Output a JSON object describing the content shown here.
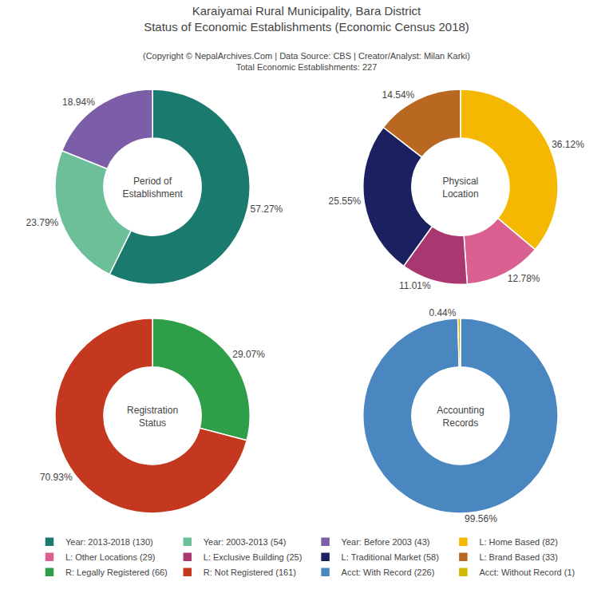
{
  "chart_data": [
    {
      "type": "pie",
      "title": "Karaiyamai Rural Municipality, Bara District\nStatus of Economic Establishments (Economic Census 2018)",
      "subtitle": "(Copyright © NepalArchives.Com | Data Source: CBS | Creator/Analyst: Milan Karki)\nTotal Economic Establishments: 227",
      "annotations": [
        "Period of\nEstablishment"
      ],
      "categories": [
        "Year: 2013-2018 (130)",
        "Year: 2003-2013 (54)",
        "Year: Before 2003 (43)"
      ],
      "values": [
        57.27,
        23.79,
        18.94
      ],
      "value_labels": [
        "57.27%",
        "23.79%",
        "18.94%"
      ],
      "colors": [
        "#1a7a6e",
        "#6dbf99",
        "#7b5ea7"
      ],
      "data_labels": true,
      "legend": "bottom"
    },
    {
      "type": "pie",
      "annotations": [
        "Physical\nLocation"
      ],
      "categories": [
        "L: Home Based (82)",
        "L: Other Locations (29)",
        "L: Exclusive Building (25)",
        "L: Traditional Market (58)",
        "L: Brand Based (33)"
      ],
      "values": [
        36.12,
        12.78,
        11.01,
        25.55,
        14.54
      ],
      "value_labels": [
        "36.12%",
        "12.78%",
        "11.01%",
        "25.55%",
        "14.54%"
      ],
      "colors": [
        "#f5b800",
        "#d96090",
        "#aa3870",
        "#1a2060",
        "#b86820"
      ],
      "data_labels": true
    },
    {
      "type": "pie",
      "annotations": [
        "Registration\nStatus"
      ],
      "categories": [
        "R: Legally Registered (66)",
        "R: Not Registered (161)"
      ],
      "values": [
        29.07,
        70.93
      ],
      "value_labels": [
        "29.07%",
        "70.93%"
      ],
      "colors": [
        "#2e9e48",
        "#c43820"
      ],
      "data_labels": true
    },
    {
      "type": "pie",
      "annotations": [
        "Accounting\nRecords"
      ],
      "categories": [
        "Acct: With Record (226)",
        "Acct: Without Record (1)"
      ],
      "values": [
        99.56,
        0.44
      ],
      "value_labels": [
        "99.56%",
        "0.44%"
      ],
      "colors": [
        "#4a86c0",
        "#d4b800"
      ],
      "data_labels": true
    }
  ]
}
